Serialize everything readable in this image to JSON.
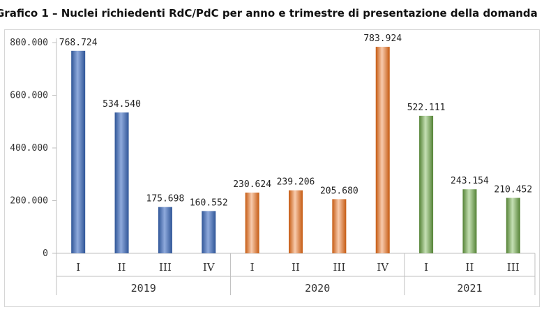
{
  "chart_data": {
    "type": "bar",
    "title": "Grafico 1 – Nuclei richiedenti RdC/PdC per anno e trimestre di presentazione della domanda",
    "ylim": [
      0,
      800000
    ],
    "yticks": [
      "0",
      "200.000",
      "400.000",
      "600.000",
      "800.000"
    ],
    "ytick_values": [
      0,
      200000,
      400000,
      600000,
      800000
    ],
    "grid": false,
    "legend": "none",
    "groups": [
      {
        "name": "2019",
        "color": "#4472C4",
        "categories": [
          "I",
          "II",
          "III",
          "IV"
        ],
        "values": [
          768724,
          534540,
          175698,
          160552
        ],
        "labels": [
          "768.724",
          "534.540",
          "175.698",
          "160.552"
        ]
      },
      {
        "name": "2020",
        "color": "#ED7D31",
        "categories": [
          "I",
          "II",
          "III",
          "IV"
        ],
        "values": [
          230624,
          239206,
          205680,
          783924
        ],
        "labels": [
          "230.624",
          "239.206",
          "205.680",
          "783.924"
        ]
      },
      {
        "name": "2021",
        "color": "#70AD47",
        "categories": [
          "I",
          "II",
          "III"
        ],
        "values": [
          522111,
          243154,
          210452
        ],
        "labels": [
          "522.111",
          "243.154",
          "210.452"
        ]
      }
    ]
  }
}
